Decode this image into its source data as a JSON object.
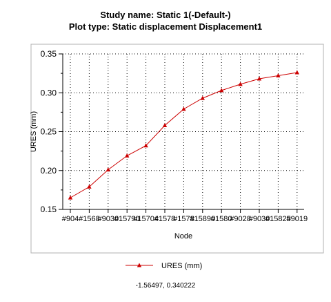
{
  "header": {
    "line1": "Study name: Static 1(-Default-)",
    "line2": "Plot type: Static displacement Displacement1"
  },
  "coordinate_readout": "-1.56497, 0.340222",
  "colors": {
    "series": "#cc0000",
    "axis": "#000000",
    "grid": "#000000",
    "frame": "#b0b0b0"
  },
  "chart_data": {
    "type": "line",
    "xlabel": "Node",
    "ylabel": "URES (mm)",
    "ylim": [
      0.15,
      0.35
    ],
    "yticks": [
      "0.35",
      "0.30",
      "0.25",
      "0.20",
      "0.15"
    ],
    "grid": true,
    "legend_position": "bottom",
    "categories": [
      "#904",
      "#1568",
      "#9030",
      "#15790",
      "#15704",
      "#1578",
      "#1578",
      "#15890",
      "#1580",
      "#9028",
      "#9030",
      "#15825",
      "#9019"
    ],
    "series": [
      {
        "name": "URES (mm)",
        "values": [
          0.165,
          0.179,
          0.201,
          0.219,
          0.232,
          0.258,
          0.279,
          0.293,
          0.303,
          0.311,
          0.318,
          0.322,
          0.326
        ]
      }
    ]
  }
}
